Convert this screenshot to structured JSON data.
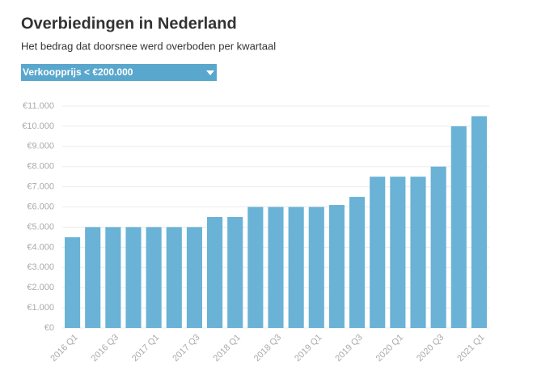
{
  "title": "Overbiedingen in Nederland",
  "subtitle": "Het bedrag dat doorsnee werd overboden per kwartaal",
  "filter": {
    "label": "Verkoopprijs < €200.000"
  },
  "chart_data": {
    "type": "bar",
    "categories": [
      "2016 Q1",
      null,
      "2016 Q3",
      null,
      "2017 Q1",
      null,
      "2017 Q3",
      null,
      "2018 Q1",
      null,
      "2018 Q3",
      null,
      "2019 Q1",
      null,
      "2019 Q3",
      null,
      "2020 Q1",
      null,
      "2020 Q3",
      null,
      "2021 Q1"
    ],
    "values": [
      4500,
      5000,
      5000,
      5000,
      5000,
      5000,
      5000,
      5500,
      5500,
      6000,
      6000,
      6000,
      6000,
      6100,
      6500,
      7500,
      7500,
      7500,
      8000,
      10000,
      10500
    ],
    "color": "#6ab2d6",
    "ylim": [
      0,
      11000
    ],
    "yticks": [
      {
        "value": 0,
        "label": "€0"
      },
      {
        "value": 1000,
        "label": "€1.000"
      },
      {
        "value": 2000,
        "label": "€2.000"
      },
      {
        "value": 3000,
        "label": "€3.000"
      },
      {
        "value": 4000,
        "label": "€4.000"
      },
      {
        "value": 5000,
        "label": "€5.000"
      },
      {
        "value": 6000,
        "label": "€6.000"
      },
      {
        "value": 7000,
        "label": "€7.000"
      },
      {
        "value": 8000,
        "label": "€8.000"
      },
      {
        "value": 9000,
        "label": "€9.000"
      },
      {
        "value": 10000,
        "label": "€10.000"
      },
      {
        "value": 11000,
        "label": "€11.000"
      }
    ],
    "grid": true
  }
}
